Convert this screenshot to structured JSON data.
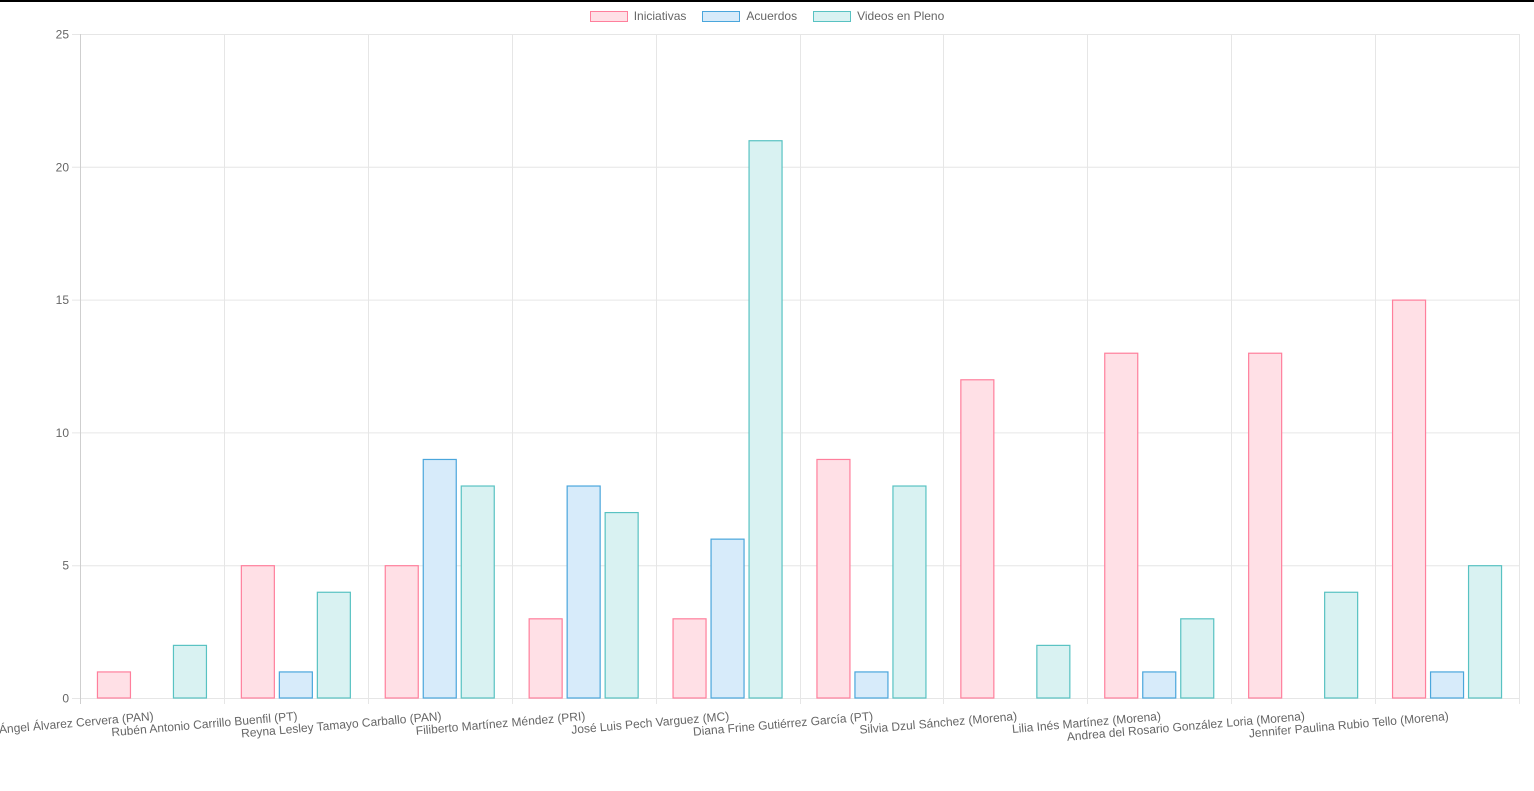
{
  "chart_data": {
    "type": "bar",
    "categories": [
      "Ángel Álvarez Cervera (PAN)",
      "Rubén Antonio Carrillo Buenfil (PT)",
      "Reyna Lesley Tamayo Carballo (PAN)",
      "Filiberto Martínez Méndez (PRI)",
      "José Luis Pech Varguez (MC)",
      "Diana Frine Gutiérrez García (PT)",
      "Silvia Dzul Sánchez (Morena)",
      "Lilia Inés Martínez (Morena)",
      "Andrea del Rosario González Loria (Morena)",
      "Jennifer Paulina Rubio Tello (Morena)"
    ],
    "series": [
      {
        "name": "Iniciativas",
        "values": [
          1,
          5,
          5,
          3,
          3,
          9,
          12,
          13,
          13,
          15
        ],
        "fill": "#ffe0e6",
        "stroke": "#ff7f9c"
      },
      {
        "name": "Acuerdos",
        "values": [
          0,
          1,
          9,
          8,
          6,
          1,
          0,
          1,
          0,
          1
        ],
        "fill": "#d7ebfa",
        "stroke": "#4aa6dc"
      },
      {
        "name": "Videos en Pleno",
        "values": [
          2,
          4,
          8,
          7,
          21,
          8,
          2,
          3,
          4,
          5
        ],
        "fill": "#d9f2f2",
        "stroke": "#58c2c2"
      }
    ],
    "ylim": [
      0,
      25
    ],
    "yticks": [
      0,
      5,
      10,
      15,
      20,
      25
    ],
    "grid": true,
    "legend_position": "top-center"
  }
}
